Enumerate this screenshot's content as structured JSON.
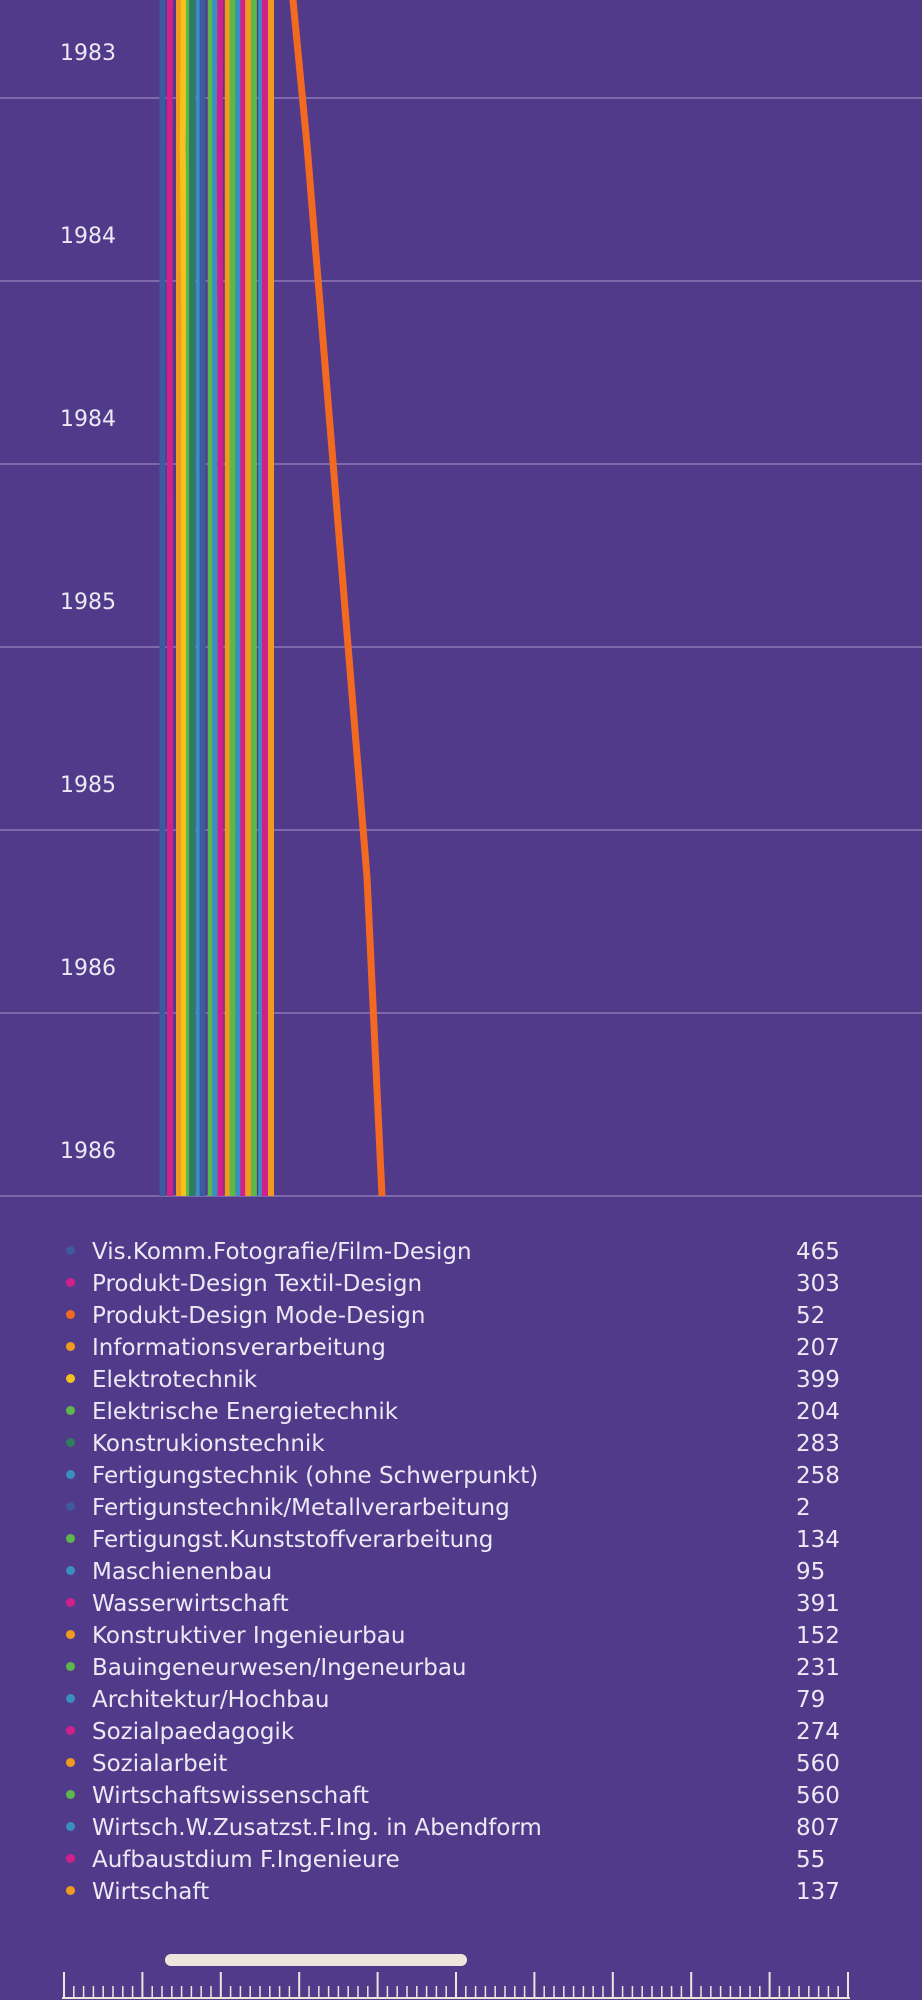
{
  "chart_data": {
    "type": "line",
    "orientation": "vertical-time",
    "y_ticks": [
      "1983",
      "1984",
      "1984",
      "1985",
      "1985",
      "1986",
      "1986"
    ],
    "grid": true,
    "series": [
      {
        "name": "Vis.Komm.Fotografie/Film-Design",
        "color": "#3d5a9e",
        "values": [
          465,
          465,
          465,
          465,
          465,
          465,
          465
        ]
      },
      {
        "name": "Produkt-Design Textil-Design",
        "color": "#d21f8c",
        "values": [
          303,
          302,
          302,
          303,
          303,
          303,
          303
        ]
      },
      {
        "name": "Produkt-Design Mode-Design",
        "color": "#f26a21",
        "values": [
          40,
          42,
          44,
          46,
          48,
          50,
          52
        ]
      },
      {
        "name": "Informationsverarbeitung",
        "color": "#f29a1e",
        "values": [
          207,
          207,
          207,
          207,
          207,
          207,
          207
        ]
      },
      {
        "name": "Elektrotechnik",
        "color": "#f2c21e",
        "values": [
          399,
          396,
          400,
          399,
          399,
          399,
          399
        ]
      },
      {
        "name": "Elektrische Energietechnik",
        "color": "#5cb84a",
        "values": [
          204,
          204,
          204,
          204,
          204,
          204,
          204
        ]
      },
      {
        "name": "Konstrukionstechnik",
        "color": "#2e7d5b",
        "values": [
          283,
          283,
          283,
          283,
          283,
          283,
          283
        ]
      },
      {
        "name": "Fertigungstechnik (ohne Schwerpunkt)",
        "color": "#3a8fc2",
        "values": [
          258,
          258,
          258,
          258,
          258,
          258,
          258
        ]
      },
      {
        "name": "Fertigunstechnik/Metallverarbeitung",
        "color": "#3d5a9e",
        "values": [
          2,
          2,
          2,
          2,
          2,
          2,
          2
        ]
      },
      {
        "name": "Fertigungst.Kunststoffverarbeitung",
        "color": "#5cb84a",
        "values": [
          134,
          134,
          134,
          134,
          134,
          134,
          134
        ]
      },
      {
        "name": "Maschienenbau",
        "color": "#3a8fc2",
        "values": [
          95,
          95,
          95,
          95,
          95,
          95,
          95
        ]
      },
      {
        "name": "Wasserwirtschaft",
        "color": "#d21f8c",
        "values": [
          391,
          389,
          391,
          391,
          391,
          391,
          391
        ]
      },
      {
        "name": "Konstruktiver Ingenieurbau",
        "color": "#f29a1e",
        "values": [
          152,
          152,
          152,
          152,
          152,
          152,
          152
        ]
      },
      {
        "name": "Bauingeneurwesen/Ingeneurbau",
        "color": "#5cb84a",
        "values": [
          231,
          231,
          231,
          231,
          231,
          231,
          231
        ]
      },
      {
        "name": "Architektur/Hochbau",
        "color": "#3a8fc2",
        "values": [
          79,
          79,
          79,
          79,
          79,
          79,
          79
        ]
      },
      {
        "name": "Sozialpaedagogik",
        "color": "#d21f8c",
        "values": [
          274,
          274,
          274,
          274,
          274,
          274,
          274
        ]
      },
      {
        "name": "Sozialarbeit",
        "color": "#f29a1e",
        "values": [
          560,
          560,
          560,
          560,
          560,
          560,
          560
        ]
      },
      {
        "name": "Wirtschaftswissenschaft",
        "color": "#5cb84a",
        "values": [
          560,
          560,
          560,
          560,
          560,
          560,
          560
        ]
      },
      {
        "name": "Wirtsch.W.Zusatzst.F.Ing. in Abendform",
        "color": "#3a8fc2",
        "values": [
          807,
          807,
          807,
          807,
          807,
          807,
          807
        ]
      },
      {
        "name": "Aufbaustdium F.Ingenieure",
        "color": "#d21f8c",
        "values": [
          55,
          55,
          55,
          55,
          55,
          55,
          55
        ]
      },
      {
        "name": "Wirtschaft",
        "color": "#f29a1e",
        "values": [
          137,
          137,
          137,
          137,
          137,
          137,
          137
        ]
      }
    ]
  },
  "colors": {
    "background": "#523a8a",
    "gridline": "#8a78b4",
    "text": "#ece8f4",
    "scrollbar": "#ece6dc"
  }
}
